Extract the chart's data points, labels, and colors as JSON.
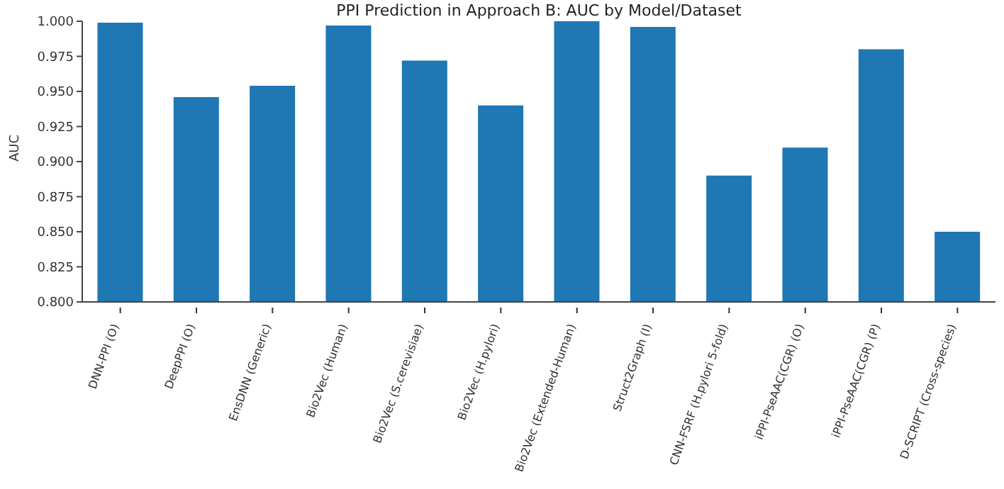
{
  "chart_data": {
    "type": "bar",
    "title": "PPI Prediction in Approach B: AUC by Model/Dataset",
    "ylabel": "AUC",
    "categories": [
      "DNN-PPI (O)",
      "DeepPPI (O)",
      "EnsDNN (Generic)",
      "Bio2Vec (Human)",
      "Bio2Vec (S.cerevisiae)",
      "Bio2Vec (H.pylori)",
      "Bio2Vec (Extended-Human)",
      "Struct2Graph (I)",
      "CNN-FSRF (H.pylori 5-fold)",
      "iPPI-PseAAC(CGR) (O)",
      "iPPI-PseAAC(CGR) (P)",
      "D-SCRIPT (Cross-species)"
    ],
    "values": [
      0.999,
      0.946,
      0.954,
      0.997,
      0.972,
      0.94,
      1.0,
      0.996,
      0.89,
      0.91,
      0.98,
      0.85
    ],
    "color": "#1f77b4",
    "ylim": [
      0.8,
      1.0
    ],
    "yticks": [
      {
        "value": 0.8,
        "label": "0.800"
      },
      {
        "value": 0.825,
        "label": "0.825"
      },
      {
        "value": 0.85,
        "label": "0.850"
      },
      {
        "value": 0.875,
        "label": "0.875"
      },
      {
        "value": 0.9,
        "label": "0.900"
      },
      {
        "value": 0.925,
        "label": "0.925"
      },
      {
        "value": 0.95,
        "label": "0.950"
      },
      {
        "value": 0.975,
        "label": "0.975"
      },
      {
        "value": 1.0,
        "label": "1.000"
      }
    ],
    "grid": false,
    "legend": false
  }
}
